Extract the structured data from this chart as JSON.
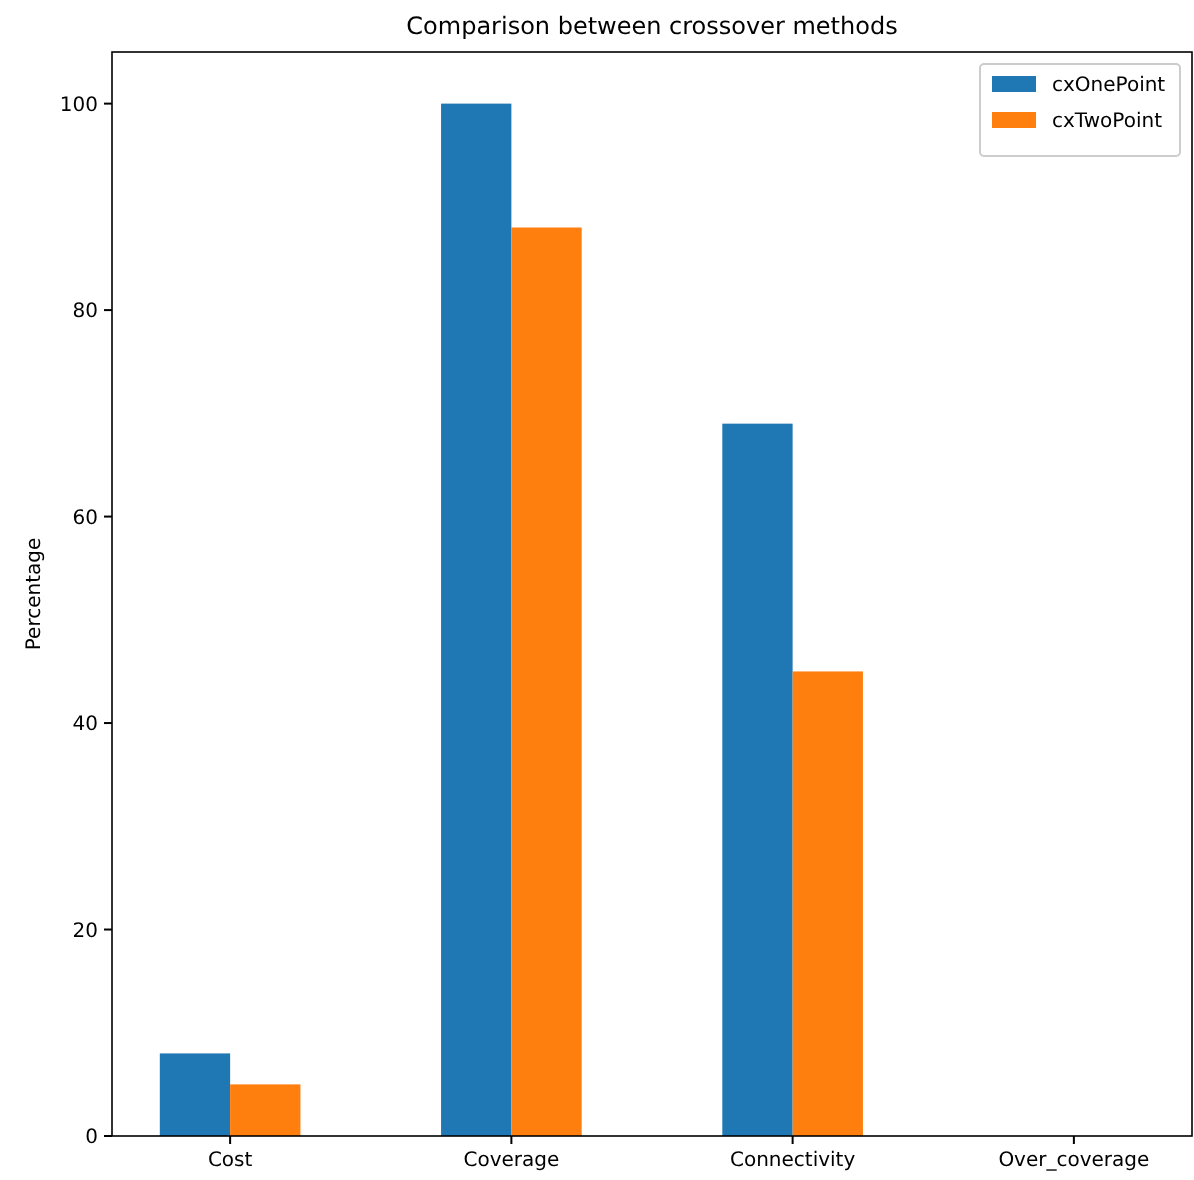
{
  "chart_data": {
    "type": "bar",
    "title": "Comparison between crossover methods",
    "ylabel": "Percentage",
    "categories": [
      "Cost",
      "Coverage",
      "Connectivity",
      "Over_coverage"
    ],
    "series": [
      {
        "name": "cxOnePoint",
        "color": "#1f77b4",
        "values": [
          8,
          100,
          69,
          0
        ]
      },
      {
        "name": "cxTwoPoint",
        "color": "#ff7f0e",
        "values": [
          5,
          88,
          45,
          0
        ]
      }
    ],
    "ylim": [
      0,
      105
    ],
    "yticks": [
      0,
      20,
      40,
      60,
      80,
      100
    ],
    "grid": false,
    "legend": "top right"
  }
}
